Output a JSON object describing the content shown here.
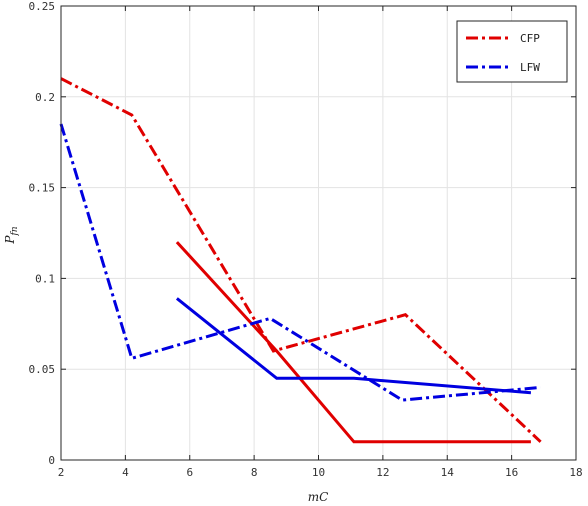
{
  "chart_data": {
    "type": "line",
    "title": "",
    "xlabel": "mC",
    "ylabel": "P_fn",
    "xlim": [
      2,
      18
    ],
    "ylim": [
      0,
      0.25
    ],
    "xticks": [
      2,
      4,
      6,
      8,
      10,
      12,
      14,
      16,
      18
    ],
    "yticks": [
      0,
      0.05,
      0.1,
      0.15,
      0.2,
      0.25
    ],
    "xtick_labels": [
      "2",
      "4",
      "6",
      "8",
      "10",
      "12",
      "14",
      "16",
      "18"
    ],
    "ytick_labels": [
      "0",
      "0.05",
      "0.1",
      "0.15",
      "0.2",
      "0.25"
    ],
    "grid": true,
    "legend_position": "top-right",
    "legend": [
      "CFP",
      "LFW"
    ],
    "series": [
      {
        "color": "#e00000",
        "style": "dashdot",
        "x": [
          2,
          4.2,
          8.6,
          12.7,
          16.9
        ],
        "y": [
          0.21,
          0.19,
          0.06,
          0.08,
          0.01
        ]
      },
      {
        "color": "#e00000",
        "style": "solid",
        "x": [
          5.6,
          8.7,
          11.1,
          16.6
        ],
        "y": [
          0.12,
          0.06,
          0.01,
          0.01
        ]
      },
      {
        "color": "#0000e0",
        "style": "dashdot",
        "x": [
          2,
          4.2,
          8.5,
          12.6,
          16.9
        ],
        "y": [
          0.185,
          0.056,
          0.078,
          0.033,
          0.04
        ]
      },
      {
        "color": "#0000e0",
        "style": "solid",
        "x": [
          5.6,
          8.7,
          11.1,
          16.6
        ],
        "y": [
          0.089,
          0.045,
          0.045,
          0.037
        ]
      }
    ],
    "legend_entries": [
      {
        "label": "CFP",
        "color": "#e00000",
        "style": "dashdot"
      },
      {
        "label": "LFW",
        "color": "#0000e0",
        "style": "dashdot"
      }
    ]
  }
}
